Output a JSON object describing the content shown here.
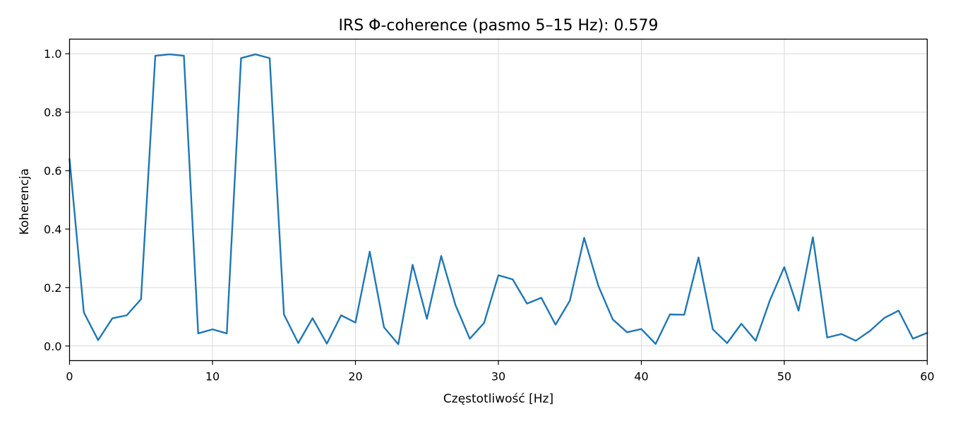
{
  "chart_data": {
    "type": "line",
    "title": "IRS Φ-coherence (pasmo 5–15 Hz): 0.579",
    "xlabel": "Częstotliwość [Hz]",
    "ylabel": "Koherencja",
    "xlim": [
      0,
      60
    ],
    "ylim": [
      -0.05,
      1.05
    ],
    "xticks": [
      0,
      10,
      20,
      30,
      40,
      50,
      60
    ],
    "xtick_labels": [
      "0",
      "10",
      "20",
      "30",
      "40",
      "50",
      "60"
    ],
    "yticks": [
      0.0,
      0.2,
      0.4,
      0.6,
      0.8,
      1.0
    ],
    "ytick_labels": [
      "0.0",
      "0.2",
      "0.4",
      "0.6",
      "0.8",
      "1.0"
    ],
    "grid": true,
    "line_color": "#1f77b4",
    "x": [
      0,
      1,
      2,
      3,
      4,
      5,
      6,
      7,
      8,
      9,
      10,
      11,
      12,
      13,
      14,
      15,
      16,
      17,
      18,
      19,
      20,
      21,
      22,
      23,
      24,
      25,
      26,
      27,
      28,
      29,
      30,
      31,
      32,
      33,
      34,
      35,
      36,
      37,
      38,
      39,
      40,
      41,
      42,
      43,
      44,
      45,
      46,
      47,
      48,
      49,
      50,
      51,
      52,
      53,
      54,
      55,
      56,
      57,
      58,
      59,
      60
    ],
    "y": [
      0.64,
      0.115,
      0.02,
      0.095,
      0.105,
      0.16,
      0.993,
      0.998,
      0.993,
      0.043,
      0.057,
      0.043,
      0.985,
      0.998,
      0.985,
      0.108,
      0.01,
      0.095,
      0.008,
      0.105,
      0.08,
      0.323,
      0.064,
      0.006,
      0.278,
      0.093,
      0.308,
      0.14,
      0.025,
      0.079,
      0.242,
      0.228,
      0.145,
      0.165,
      0.073,
      0.155,
      0.37,
      0.205,
      0.091,
      0.047,
      0.058,
      0.007,
      0.108,
      0.107,
      0.303,
      0.057,
      0.01,
      0.076,
      0.018,
      0.157,
      0.27,
      0.121,
      0.372,
      0.029,
      0.041,
      0.018,
      0.052,
      0.096,
      0.121,
      0.025,
      0.045
    ]
  }
}
